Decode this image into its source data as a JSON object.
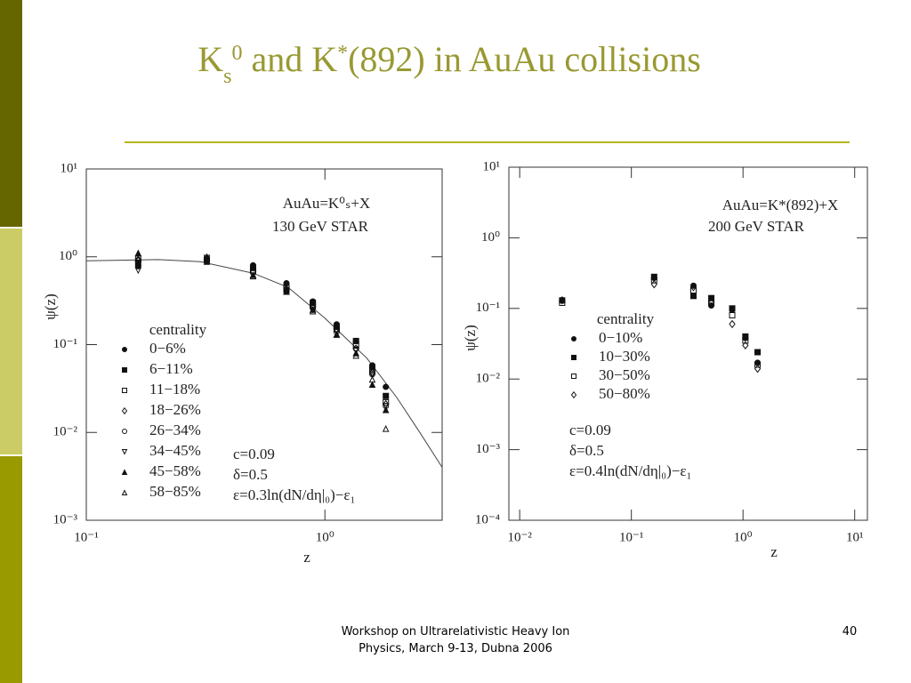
{
  "header": {
    "title": [
      "K",
      "s",
      "0",
      " and K",
      "*",
      "(892) in AuAu collisions"
    ]
  },
  "footer": {
    "lines": [
      "Workshop on Ultrarelativistic Heavy Ion",
      "Physics, March 9-13, Dubna 2006"
    ],
    "page": "40"
  },
  "chart_data": [
    {
      "type": "scatter",
      "log_x": true,
      "log_y": true,
      "xlabel": "z",
      "ylabel": "ψ(z)",
      "reaction": "AuAu=K⁰ₛ+X",
      "energy": "130 GeV STAR",
      "parameters": [
        "c=0.09",
        "δ=0.5",
        "ε=0.3ln(dN/dη|₀)−ε₁"
      ],
      "legend_title": "centrality",
      "xlim": [
        0.1,
        3.1
      ],
      "ylim": [
        0.001,
        10
      ],
      "xticks": [
        {
          "value": 0.1,
          "label": "10⁻¹"
        },
        {
          "value": 1,
          "label": "10⁰"
        }
      ],
      "yticks": [
        {
          "value": 0.001,
          "label": "10⁻³"
        },
        {
          "value": 0.01,
          "label": "10⁻²"
        },
        {
          "value": 0.1,
          "label": "10⁻¹"
        },
        {
          "value": 1,
          "label": "10⁰"
        },
        {
          "value": 10,
          "label": "10¹"
        }
      ],
      "x": [
        0.165,
        0.32,
        0.5,
        0.69,
        0.89,
        1.12,
        1.35,
        1.58,
        1.8
      ],
      "series": [
        {
          "name": "0−6%",
          "marker": "circle-filled",
          "values": [
            0.78,
            0.95,
            0.8,
            0.5,
            0.31,
            0.17,
            0.11,
            0.058,
            0.033
          ]
        },
        {
          "name": "6−11%",
          "marker": "square-filled",
          "values": [
            0.85,
            0.93,
            0.75,
            0.42,
            0.3,
            0.16,
            0.11,
            0.055,
            0.026
          ]
        },
        {
          "name": "11−18%",
          "marker": "square-open",
          "values": [
            0.95,
            0.92,
            0.7,
            0.45,
            0.28,
            0.15,
            0.1,
            0.05,
            0.022
          ]
        },
        {
          "name": "18−26%",
          "marker": "diamond-open",
          "values": [
            0.9,
            0.9,
            0.68,
            0.43,
            0.27,
            0.15,
            0.09,
            0.048,
            0.021
          ]
        },
        {
          "name": "26−34%",
          "marker": "circle-open",
          "values": [
            0.92,
            0.95,
            0.66,
            0.42,
            0.26,
            0.14,
            0.09,
            0.046,
            0.02
          ]
        },
        {
          "name": "34−45%",
          "marker": "triangle-down-open",
          "values": [
            0.7,
            0.97,
            0.65,
            0.42,
            0.25,
            0.14,
            0.085,
            0.045,
            0.02
          ]
        },
        {
          "name": "45−58%",
          "marker": "triangle-filled",
          "values": [
            1.1,
            0.88,
            0.62,
            0.4,
            0.25,
            0.13,
            0.08,
            0.035,
            0.018
          ]
        },
        {
          "name": "58−85%",
          "marker": "triangle-open",
          "values": [
            0.95,
            1.0,
            0.6,
            0.4,
            0.24,
            0.13,
            0.075,
            0.04,
            0.011
          ]
        }
      ],
      "curve": {
        "x": [
          0.1,
          0.2,
          0.3,
          0.5,
          0.7,
          1.0,
          1.5,
          2.0,
          2.5,
          3.1
        ],
        "values": [
          0.9,
          0.93,
          0.88,
          0.65,
          0.45,
          0.2,
          0.07,
          0.025,
          0.01,
          0.004
        ]
      }
    },
    {
      "type": "scatter",
      "log_x": true,
      "log_y": true,
      "xlabel": "z",
      "ylabel": "ψ(z)",
      "reaction": "AuAu=K*(892)+X",
      "energy": "200 GeV STAR",
      "parameters": [
        "c=0.09",
        "δ=0.5",
        "ε=0.4ln(dN/dη|₀)−ε₁"
      ],
      "legend_title": "centrality",
      "xlim": [
        0.008,
        13
      ],
      "ylim": [
        0.0001,
        10
      ],
      "xticks": [
        {
          "value": 0.01,
          "label": "10⁻²"
        },
        {
          "value": 0.1,
          "label": "10⁻¹"
        },
        {
          "value": 1,
          "label": "10⁰"
        },
        {
          "value": 10,
          "label": "10¹"
        }
      ],
      "yticks": [
        {
          "value": 0.0001,
          "label": "10⁻⁴"
        },
        {
          "value": 0.001,
          "label": "10⁻³"
        },
        {
          "value": 0.01,
          "label": "10⁻²"
        },
        {
          "value": 0.1,
          "label": "10⁻¹"
        },
        {
          "value": 1,
          "label": "10⁰"
        },
        {
          "value": 10,
          "label": "10¹"
        }
      ],
      "x": [
        0.024,
        0.16,
        0.36,
        0.52,
        0.8,
        1.05,
        1.35
      ],
      "series": [
        {
          "name": "0−10%",
          "marker": "circle-filled",
          "values": [
            0.13,
            0.27,
            0.21,
            0.11,
            0.095,
            0.038,
            0.017
          ]
        },
        {
          "name": "10−30%",
          "marker": "square-filled",
          "values": [
            0.13,
            0.28,
            0.15,
            0.14,
            0.1,
            0.04,
            0.024
          ]
        },
        {
          "name": "30−50%",
          "marker": "square-open",
          "values": [
            0.12,
            0.25,
            0.18,
            0.12,
            0.08,
            0.035,
            0.016
          ]
        },
        {
          "name": "50−80%",
          "marker": "diamond-open",
          "values": [
            0.13,
            0.22,
            0.2,
            0.12,
            0.06,
            0.03,
            0.014
          ]
        }
      ]
    }
  ]
}
